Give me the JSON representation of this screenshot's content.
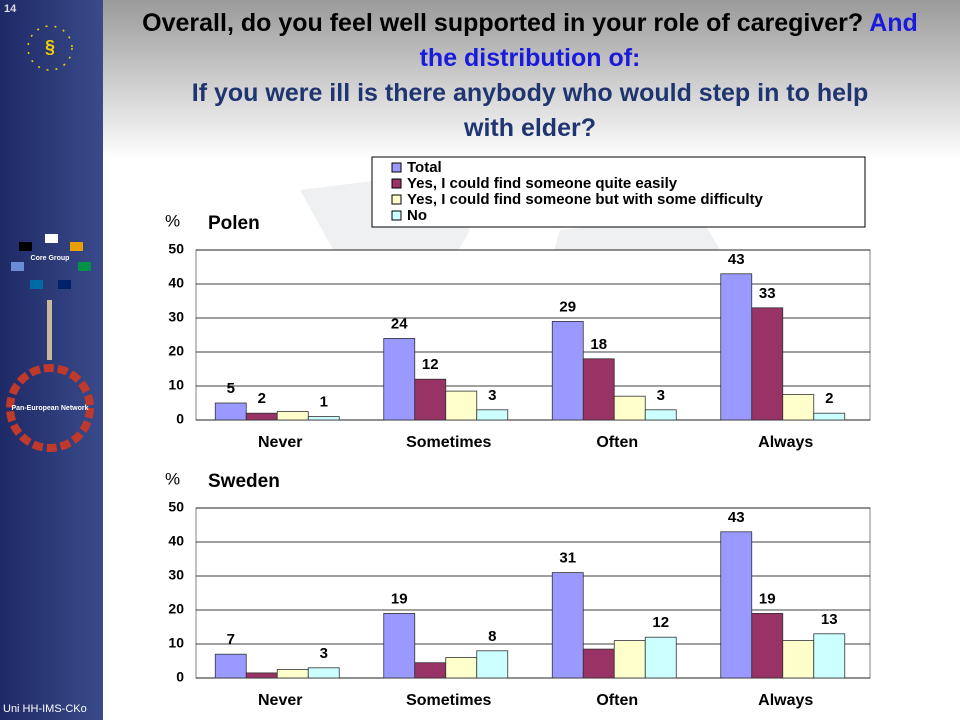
{
  "slide_number": "14",
  "footer": "Uni HH-IMS-CKo",
  "sidebar": {
    "core_group": "Core Group",
    "network": "Pan-European Network"
  },
  "title": {
    "line_black": "Overall, do you feel well supported in your role of caregiver?",
    "line_blue": "And the distribution of:",
    "question": "If you were ill is there anybody who would step in to help with elder?"
  },
  "chart_data": [
    {
      "type": "bar",
      "title": "Polen",
      "y_label": "%",
      "categories": [
        "Never",
        "Sometimes",
        "Often",
        "Always"
      ],
      "ylim": [
        0,
        50
      ],
      "yticks": [
        0,
        10,
        20,
        30,
        40,
        50
      ],
      "grid": true,
      "series": [
        {
          "name": "Total",
          "color": "#9999ff",
          "values": [
            5,
            24,
            29,
            43
          ],
          "data_labels": true
        },
        {
          "name": "Yes, I could find someone quite easily",
          "color": "#993366",
          "values": [
            2,
            12,
            18,
            33
          ],
          "data_labels": true
        },
        {
          "name": "Yes, I could find someone but with some difficulty",
          "color": "#ffffcc",
          "values": [
            2.5,
            8.5,
            7,
            7.5
          ],
          "data_labels": false
        },
        {
          "name": "No",
          "color": "#ccffff",
          "values": [
            1,
            3,
            3,
            2
          ],
          "data_labels": true
        }
      ]
    },
    {
      "type": "bar",
      "title": "Sweden",
      "y_label": "%",
      "categories": [
        "Never",
        "Sometimes",
        "Often",
        "Always"
      ],
      "ylim": [
        0,
        50
      ],
      "yticks": [
        0,
        10,
        20,
        30,
        40,
        50
      ],
      "grid": true,
      "series": [
        {
          "color": "#9999ff",
          "values": [
            7,
            19,
            31,
            43
          ],
          "data_labels": true
        },
        {
          "color": "#993366",
          "values": [
            1.5,
            4.5,
            8.5,
            19
          ],
          "data_labels": [
            false,
            false,
            false,
            true
          ]
        },
        {
          "color": "#ffffcc",
          "values": [
            2.5,
            6,
            11,
            11
          ],
          "data_labels": false
        },
        {
          "color": "#ccffff",
          "values": [
            3,
            8,
            12,
            13
          ],
          "data_labels": true
        }
      ]
    }
  ]
}
